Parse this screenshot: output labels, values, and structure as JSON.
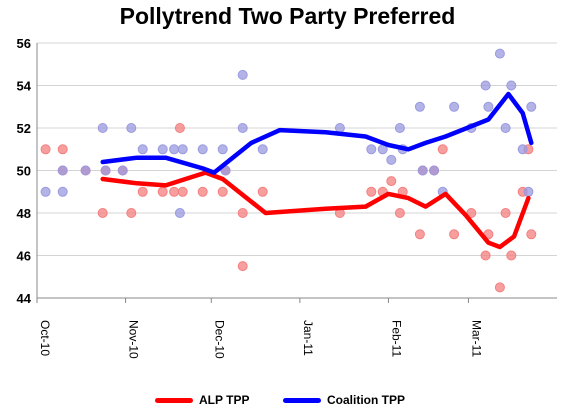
{
  "chart_data": {
    "type": "scatter",
    "title": "Pollytrend Two Party Preferred",
    "xlabel": "",
    "ylabel": "",
    "ylim": [
      44,
      56
    ],
    "y_ticks": [
      "44",
      "46",
      "48",
      "50",
      "52",
      "54",
      "56"
    ],
    "x_ticks": [
      {
        "label": "Oct-10",
        "date": "2010-10-01"
      },
      {
        "label": "Nov-10",
        "date": "2010-11-01"
      },
      {
        "label": "Dec-10",
        "date": "2010-12-01"
      },
      {
        "label": "Jan-11",
        "date": "2011-01-01"
      },
      {
        "label": "Feb-11",
        "date": "2011-02-01"
      },
      {
        "label": "Mar-11",
        "date": "2011-03-01"
      }
    ],
    "xlim": [
      "2010-10-01",
      "2011-04-01"
    ],
    "grid": "horizontal",
    "legend": "bottom",
    "series": [
      {
        "name": "ALP TPP",
        "color": "#ff0000",
        "point_color": "#f47f7f",
        "trend": [
          [
            "2010-10-24",
            49.6
          ],
          [
            "2010-11-05",
            49.4
          ],
          [
            "2010-11-15",
            49.3
          ],
          [
            "2010-11-29",
            49.9
          ],
          [
            "2010-12-05",
            49.6
          ],
          [
            "2010-12-20",
            48.0
          ],
          [
            "2011-01-10",
            48.2
          ],
          [
            "2011-01-24",
            48.3
          ],
          [
            "2011-02-01",
            48.9
          ],
          [
            "2011-02-08",
            48.7
          ],
          [
            "2011-02-14",
            48.3
          ],
          [
            "2011-02-21",
            48.9
          ],
          [
            "2011-02-28",
            47.9
          ],
          [
            "2011-03-08",
            46.6
          ],
          [
            "2011-03-12",
            46.4
          ],
          [
            "2011-03-17",
            46.9
          ],
          [
            "2011-03-22",
            48.7
          ]
        ],
        "points": [
          [
            "2010-10-04",
            51
          ],
          [
            "2010-10-10",
            51
          ],
          [
            "2010-10-10",
            50
          ],
          [
            "2010-10-18",
            50
          ],
          [
            "2010-10-24",
            48
          ],
          [
            "2010-10-25",
            50
          ],
          [
            "2010-10-31",
            50
          ],
          [
            "2010-11-03",
            48
          ],
          [
            "2010-11-07",
            49
          ],
          [
            "2010-11-14",
            49
          ],
          [
            "2010-11-18",
            49
          ],
          [
            "2010-11-20",
            52
          ],
          [
            "2010-11-21",
            49
          ],
          [
            "2010-11-28",
            49
          ],
          [
            "2010-12-05",
            49
          ],
          [
            "2010-12-06",
            50
          ],
          [
            "2010-12-12",
            45.5
          ],
          [
            "2010-12-12",
            48
          ],
          [
            "2010-12-19",
            49
          ],
          [
            "2011-01-15",
            48
          ],
          [
            "2011-01-26",
            49
          ],
          [
            "2011-01-30",
            49
          ],
          [
            "2011-02-02",
            49.5
          ],
          [
            "2011-02-05",
            48
          ],
          [
            "2011-02-06",
            49
          ],
          [
            "2011-02-12",
            47
          ],
          [
            "2011-02-13",
            50
          ],
          [
            "2011-02-17",
            50
          ],
          [
            "2011-02-20",
            51
          ],
          [
            "2011-02-24",
            47
          ],
          [
            "2011-03-02",
            48
          ],
          [
            "2011-03-07",
            46
          ],
          [
            "2011-03-08",
            47
          ],
          [
            "2011-03-12",
            44.5
          ],
          [
            "2011-03-14",
            48
          ],
          [
            "2011-03-16",
            46
          ],
          [
            "2011-03-20",
            49
          ],
          [
            "2011-03-22",
            51
          ],
          [
            "2011-03-23",
            47
          ]
        ]
      },
      {
        "name": "Coalition TPP",
        "color": "#0000ff",
        "point_color": "#9999e0",
        "trend": [
          [
            "2010-10-24",
            50.4
          ],
          [
            "2010-11-05",
            50.6
          ],
          [
            "2010-11-15",
            50.6
          ],
          [
            "2010-11-28",
            50.1
          ],
          [
            "2010-12-02",
            49.9
          ],
          [
            "2010-12-15",
            51.3
          ],
          [
            "2010-12-25",
            51.9
          ],
          [
            "2011-01-10",
            51.8
          ],
          [
            "2011-01-24",
            51.6
          ],
          [
            "2011-02-01",
            51.2
          ],
          [
            "2011-02-08",
            51.0
          ],
          [
            "2011-02-14",
            51.3
          ],
          [
            "2011-02-21",
            51.6
          ],
          [
            "2011-03-08",
            52.4
          ],
          [
            "2011-03-15",
            53.6
          ],
          [
            "2011-03-20",
            52.7
          ],
          [
            "2011-03-23",
            51.3
          ]
        ],
        "points": [
          [
            "2010-10-04",
            49
          ],
          [
            "2010-10-10",
            49
          ],
          [
            "2010-10-10",
            50
          ],
          [
            "2010-10-18",
            50
          ],
          [
            "2010-10-24",
            52
          ],
          [
            "2010-10-25",
            50
          ],
          [
            "2010-10-31",
            50
          ],
          [
            "2010-11-03",
            52
          ],
          [
            "2010-11-07",
            51
          ],
          [
            "2010-11-14",
            51
          ],
          [
            "2010-11-18",
            51
          ],
          [
            "2010-11-20",
            48
          ],
          [
            "2010-11-21",
            51
          ],
          [
            "2010-11-28",
            51
          ],
          [
            "2010-12-05",
            51
          ],
          [
            "2010-12-06",
            50
          ],
          [
            "2010-12-12",
            54.5
          ],
          [
            "2010-12-12",
            52
          ],
          [
            "2010-12-19",
            51
          ],
          [
            "2011-01-15",
            52
          ],
          [
            "2011-01-26",
            51
          ],
          [
            "2011-01-30",
            51
          ],
          [
            "2011-02-02",
            50.5
          ],
          [
            "2011-02-05",
            52
          ],
          [
            "2011-02-06",
            51
          ],
          [
            "2011-02-12",
            53
          ],
          [
            "2011-02-13",
            50
          ],
          [
            "2011-02-17",
            50
          ],
          [
            "2011-02-20",
            49
          ],
          [
            "2011-02-24",
            53
          ],
          [
            "2011-03-02",
            52
          ],
          [
            "2011-03-07",
            54
          ],
          [
            "2011-03-08",
            53
          ],
          [
            "2011-03-12",
            55.5
          ],
          [
            "2011-03-14",
            52
          ],
          [
            "2011-03-16",
            54
          ],
          [
            "2011-03-20",
            51
          ],
          [
            "2011-03-22",
            49
          ],
          [
            "2011-03-23",
            53
          ]
        ]
      }
    ]
  }
}
